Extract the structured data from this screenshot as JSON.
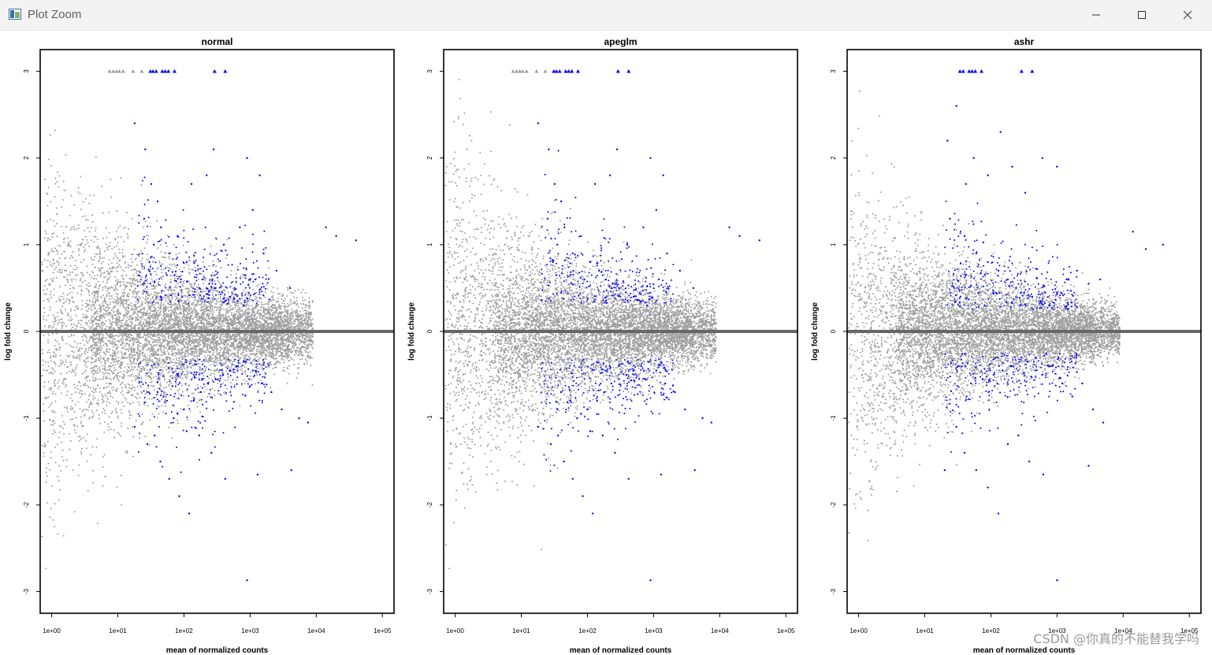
{
  "window": {
    "title": "Plot Zoom"
  },
  "icons": [
    "app-icon",
    "minimize-icon",
    "maximize-icon",
    "close-icon"
  ],
  "watermark": "CSDN @你真的不能替我学吗",
  "colors": {
    "nonsig": "#9e9e9e",
    "sig": "#0000ff",
    "zero_line": "#666666"
  },
  "chart_data": [
    {
      "type": "scatter",
      "title": "normal",
      "xlabel": "mean of normalized counts",
      "ylabel": "log fold change",
      "x_scale": "log10",
      "xlim": [
        0.67,
        150000
      ],
      "ylim": [
        -3.25,
        3.25
      ],
      "x_ticks": [
        "1e+00",
        "1e+01",
        "1e+02",
        "1e+03",
        "1e+04",
        "1e+05"
      ],
      "x_tick_values": [
        1,
        10,
        100,
        1000,
        10000,
        100000
      ],
      "y_ticks": [
        "-3",
        "-2",
        "-1",
        "0",
        "1",
        "2",
        "3"
      ],
      "y_tick_values": [
        -3,
        -2,
        -1,
        0,
        1,
        2,
        3
      ],
      "grid": false,
      "legend": "none",
      "series": [
        {
          "points_capped_at_ylim": [
            [
              7.5,
              3
            ],
            [
              8.5,
              3
            ],
            [
              9.5,
              3
            ],
            [
              10.5,
              3
            ],
            [
              12,
              3
            ],
            [
              17,
              3
            ],
            [
              23,
              3
            ]
          ],
          "points_capped_at_ylim_sig": [
            [
              31,
              3
            ],
            [
              34,
              3
            ],
            [
              38,
              3
            ],
            [
              47,
              3
            ],
            [
              52,
              3
            ],
            [
              58,
              3
            ],
            [
              72,
              3
            ],
            [
              290,
              3
            ],
            [
              420,
              3
            ]
          ],
          "points": [
            [
              18,
              2.4
            ],
            [
              26,
              2.1
            ],
            [
              32,
              1.7
            ],
            [
              40,
              1.5
            ],
            [
              25,
              1.3
            ],
            [
              45,
              1.2
            ],
            [
              35,
              1.0
            ],
            [
              60,
              0.9
            ],
            [
              80,
              1.1
            ],
            [
              110,
              0.8
            ],
            [
              150,
              0.7
            ],
            [
              190,
              0.6
            ],
            [
              240,
              0.55
            ],
            [
              300,
              0.5
            ],
            [
              380,
              0.45
            ],
            [
              500,
              0.4
            ],
            [
              650,
              0.35
            ],
            [
              800,
              0.3
            ],
            [
              1200,
              0.6
            ],
            [
              1600,
              0.9
            ],
            [
              2500,
              0.7
            ],
            [
              4000,
              0.5
            ],
            [
              14000,
              1.2
            ],
            [
              20000,
              1.1
            ],
            [
              40000,
              1.05
            ],
            [
              30,
              0.8
            ],
            [
              55,
              0.65
            ],
            [
              90,
              0.6
            ],
            [
              130,
              1.7
            ],
            [
              220,
              1.8
            ],
            [
              280,
              2.1
            ],
            [
              900,
              2.0
            ],
            [
              1400,
              1.8
            ],
            [
              1100,
              1.4
            ],
            [
              700,
              1.2
            ],
            [
              400,
              1.0
            ],
            [
              18,
              -1.1
            ],
            [
              28,
              -1.3
            ],
            [
              36,
              -1.2
            ],
            [
              44,
              -1.5
            ],
            [
              60,
              -1.7
            ],
            [
              85,
              -1.9
            ],
            [
              120,
              -2.1
            ],
            [
              70,
              -1.0
            ],
            [
              100,
              -0.9
            ],
            [
              140,
              -0.8
            ],
            [
              180,
              -0.7
            ],
            [
              230,
              -0.6
            ],
            [
              300,
              -0.55
            ],
            [
              390,
              -0.5
            ],
            [
              500,
              -0.45
            ],
            [
              650,
              -0.4
            ],
            [
              850,
              -0.35
            ],
            [
              1100,
              -0.45
            ],
            [
              1500,
              -0.6
            ],
            [
              2100,
              -0.7
            ],
            [
              3000,
              -0.9
            ],
            [
              4200,
              -1.6
            ],
            [
              5500,
              -1.0
            ],
            [
              7500,
              -1.05
            ],
            [
              170,
              -1.2
            ],
            [
              260,
              -1.4
            ],
            [
              420,
              -1.7
            ],
            [
              1300,
              -1.65
            ],
            [
              900,
              -2.87
            ],
            [
              40,
              -0.7
            ],
            [
              55,
              -0.8
            ],
            [
              80,
              -0.95
            ],
            [
              110,
              -1.15
            ]
          ]
        }
      ]
    },
    {
      "type": "scatter",
      "title": "apeglm",
      "xlabel": "mean of normalized counts",
      "ylabel": "log fold change",
      "x_scale": "log10",
      "xlim": [
        0.67,
        150000
      ],
      "ylim": [
        -3.25,
        3.25
      ],
      "x_ticks": [
        "1e+00",
        "1e+01",
        "1e+02",
        "1e+03",
        "1e+04",
        "1e+05"
      ],
      "x_tick_values": [
        1,
        10,
        100,
        1000,
        10000,
        100000
      ],
      "y_ticks": [
        "-3",
        "-2",
        "-1",
        "0",
        "1",
        "2",
        "3"
      ],
      "y_tick_values": [
        -3,
        -2,
        -1,
        0,
        1,
        2,
        3
      ],
      "grid": false,
      "legend": "none",
      "series": [
        {
          "points_capped_at_ylim": [
            [
              7.5,
              3
            ],
            [
              8.5,
              3
            ],
            [
              9.5,
              3
            ],
            [
              10.5,
              3
            ],
            [
              12,
              3
            ],
            [
              17,
              3
            ],
            [
              23,
              3
            ]
          ],
          "points_capped_at_ylim_sig": [
            [
              31,
              3
            ],
            [
              34,
              3
            ],
            [
              38,
              3
            ],
            [
              47,
              3
            ],
            [
              52,
              3
            ],
            [
              58,
              3
            ],
            [
              72,
              3
            ],
            [
              290,
              3
            ],
            [
              420,
              3
            ]
          ],
          "points": [
            [
              18,
              2.4
            ],
            [
              26,
              2.1
            ],
            [
              32,
              1.7
            ],
            [
              40,
              1.5
            ],
            [
              25,
              1.3
            ],
            [
              45,
              1.2
            ],
            [
              35,
              1.0
            ],
            [
              60,
              0.9
            ],
            [
              80,
              1.1
            ],
            [
              110,
              0.8
            ],
            [
              150,
              0.7
            ],
            [
              190,
              0.6
            ],
            [
              240,
              0.55
            ],
            [
              300,
              0.5
            ],
            [
              380,
              0.45
            ],
            [
              500,
              0.4
            ],
            [
              650,
              0.35
            ],
            [
              800,
              0.3
            ],
            [
              1200,
              0.6
            ],
            [
              1600,
              0.9
            ],
            [
              2500,
              0.7
            ],
            [
              4000,
              0.5
            ],
            [
              14000,
              1.2
            ],
            [
              20000,
              1.1
            ],
            [
              40000,
              1.05
            ],
            [
              30,
              0.8
            ],
            [
              55,
              0.65
            ],
            [
              90,
              0.6
            ],
            [
              130,
              1.7
            ],
            [
              220,
              1.8
            ],
            [
              280,
              2.1
            ],
            [
              900,
              2.0
            ],
            [
              1400,
              1.8
            ],
            [
              1100,
              1.4
            ],
            [
              700,
              1.2
            ],
            [
              400,
              1.0
            ],
            [
              18,
              -1.1
            ],
            [
              28,
              -1.3
            ],
            [
              36,
              -1.2
            ],
            [
              44,
              -1.5
            ],
            [
              60,
              -1.7
            ],
            [
              85,
              -1.9
            ],
            [
              120,
              -2.1
            ],
            [
              70,
              -1.0
            ],
            [
              100,
              -0.9
            ],
            [
              140,
              -0.8
            ],
            [
              180,
              -0.7
            ],
            [
              230,
              -0.6
            ],
            [
              300,
              -0.55
            ],
            [
              390,
              -0.5
            ],
            [
              500,
              -0.45
            ],
            [
              650,
              -0.4
            ],
            [
              850,
              -0.35
            ],
            [
              1100,
              -0.45
            ],
            [
              1500,
              -0.6
            ],
            [
              2100,
              -0.7
            ],
            [
              3000,
              -0.9
            ],
            [
              4200,
              -1.6
            ],
            [
              5500,
              -1.0
            ],
            [
              7500,
              -1.05
            ],
            [
              170,
              -1.2
            ],
            [
              260,
              -1.4
            ],
            [
              420,
              -1.7
            ],
            [
              1300,
              -1.65
            ],
            [
              900,
              -2.87
            ],
            [
              40,
              -0.7
            ],
            [
              55,
              -0.8
            ],
            [
              80,
              -0.95
            ],
            [
              110,
              -1.15
            ]
          ]
        }
      ]
    },
    {
      "type": "scatter",
      "title": "ashr",
      "xlabel": "mean of normalized counts",
      "ylabel": "log fold change",
      "x_scale": "log10",
      "xlim": [
        0.67,
        150000
      ],
      "ylim": [
        -3.25,
        3.25
      ],
      "x_ticks": [
        "1e+00",
        "1e+01",
        "1e+02",
        "1e+03",
        "1e+04",
        "1e+05"
      ],
      "x_tick_values": [
        1,
        10,
        100,
        1000,
        10000,
        100000
      ],
      "y_ticks": [
        "-3",
        "-2",
        "-1",
        "0",
        "1",
        "2",
        "3"
      ],
      "y_tick_values": [
        -3,
        -2,
        -1,
        0,
        1,
        2,
        3
      ],
      "grid": false,
      "legend": "none",
      "series": [
        {
          "points_capped_at_ylim": [],
          "points_capped_at_ylim_sig": [
            [
              34,
              3
            ],
            [
              38,
              3
            ],
            [
              47,
              3
            ],
            [
              52,
              3
            ],
            [
              58,
              3
            ],
            [
              72,
              3
            ],
            [
              290,
              3
            ],
            [
              420,
              3
            ]
          ],
          "points": [
            [
              22,
              2.2
            ],
            [
              30,
              2.6
            ],
            [
              42,
              1.7
            ],
            [
              55,
              2.0
            ],
            [
              90,
              1.8
            ],
            [
              140,
              2.3
            ],
            [
              210,
              1.9
            ],
            [
              330,
              1.6
            ],
            [
              600,
              2.0
            ],
            [
              1000,
              1.9
            ],
            [
              24,
              1.3
            ],
            [
              40,
              1.1
            ],
            [
              60,
              0.9
            ],
            [
              90,
              0.8
            ],
            [
              130,
              0.7
            ],
            [
              180,
              0.6
            ],
            [
              240,
              0.5
            ],
            [
              320,
              0.45
            ],
            [
              420,
              0.4
            ],
            [
              560,
              0.35
            ],
            [
              760,
              0.3
            ],
            [
              1000,
              0.45
            ],
            [
              1400,
              0.6
            ],
            [
              2000,
              0.7
            ],
            [
              3000,
              0.55
            ],
            [
              4500,
              0.6
            ],
            [
              14000,
              1.15
            ],
            [
              22000,
              0.95
            ],
            [
              40000,
              1.0
            ],
            [
              50,
              -0.6
            ],
            [
              75,
              -0.55
            ],
            [
              110,
              -0.5
            ],
            [
              150,
              -0.45
            ],
            [
              200,
              -0.4
            ],
            [
              270,
              -0.35
            ],
            [
              360,
              -0.35
            ],
            [
              480,
              -0.3
            ],
            [
              640,
              -0.28
            ],
            [
              850,
              -0.4
            ],
            [
              1200,
              -0.6
            ],
            [
              1700,
              -0.75
            ],
            [
              2400,
              -0.6
            ],
            [
              3500,
              -0.9
            ],
            [
              5000,
              -1.05
            ],
            [
              30,
              -1.1
            ],
            [
              40,
              -1.4
            ],
            [
              60,
              -1.6
            ],
            [
              90,
              -1.8
            ],
            [
              130,
              -2.1
            ],
            [
              180,
              -1.3
            ],
            [
              260,
              -1.2
            ],
            [
              380,
              -1.5
            ],
            [
              620,
              -1.65
            ],
            [
              3000,
              -1.55
            ],
            [
              1000,
              -2.87
            ],
            [
              20,
              -1.6
            ]
          ]
        }
      ]
    }
  ]
}
